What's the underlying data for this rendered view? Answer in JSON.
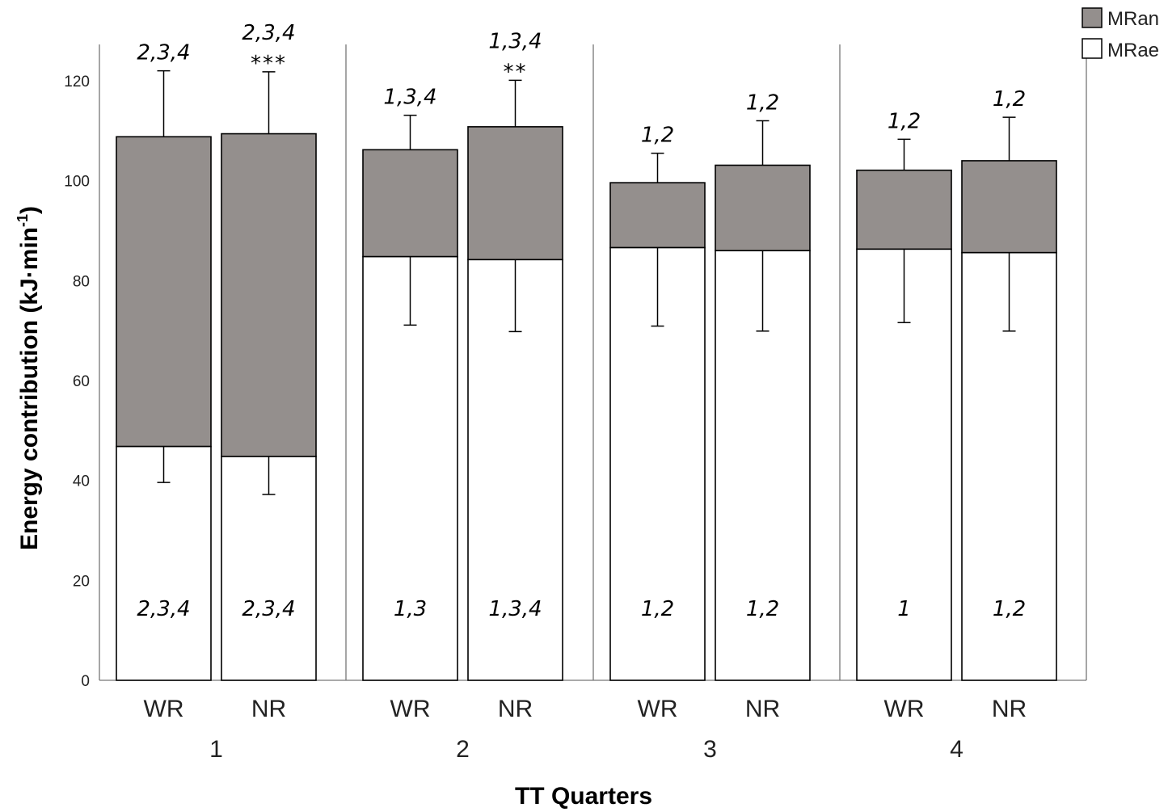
{
  "chart_data": {
    "type": "bar",
    "stacked": true,
    "xlabel": "TT Quarters",
    "ylabel": "Energy contribution (kJ·min",
    "ylabel_sup": "-1",
    "ylabel_end": ")",
    "ylim": [
      0,
      126
    ],
    "yticks": [
      0,
      20,
      40,
      60,
      80,
      100,
      120
    ],
    "quarters": [
      "1",
      "2",
      "3",
      "4"
    ],
    "conditions": [
      "WR",
      "NR"
    ],
    "legend": [
      {
        "name": "MRan",
        "color": "#948f8d"
      },
      {
        "name": "MRae",
        "color": "#ffffff"
      }
    ],
    "legend_position": "top-right",
    "series": [
      {
        "name": "MRae",
        "values": [
          46.8,
          44.8,
          84.8,
          84.2,
          86.6,
          86.0,
          86.3,
          85.6
        ]
      },
      {
        "name": "MRan",
        "values": [
          62.0,
          64.6,
          21.4,
          26.6,
          13.0,
          17.1,
          15.8,
          18.4
        ]
      }
    ],
    "bars": [
      {
        "quarter": "1",
        "condition": "WR",
        "mrae": 46.8,
        "total": 108.8,
        "mrae_err_low": 39.6,
        "total_err_high": 122.0,
        "ann_top": "2,3,4",
        "sig": "",
        "ann_bottom": "2,3,4"
      },
      {
        "quarter": "1",
        "condition": "NR",
        "mrae": 44.8,
        "total": 109.4,
        "mrae_err_low": 37.2,
        "total_err_high": 121.8,
        "ann_top": "2,3,4",
        "sig": "***",
        "ann_bottom": "2,3,4"
      },
      {
        "quarter": "2",
        "condition": "WR",
        "mrae": 84.8,
        "total": 106.2,
        "mrae_err_low": 71.1,
        "total_err_high": 113.1,
        "ann_top": "1,3,4",
        "sig": "",
        "ann_bottom": "1,3"
      },
      {
        "quarter": "2",
        "condition": "NR",
        "mrae": 84.2,
        "total": 110.8,
        "mrae_err_low": 69.8,
        "total_err_high": 120.1,
        "ann_top": "1,3,4",
        "sig": "**",
        "ann_bottom": "1,3,4"
      },
      {
        "quarter": "3",
        "condition": "WR",
        "mrae": 86.6,
        "total": 99.6,
        "mrae_err_low": 70.9,
        "total_err_high": 105.5,
        "ann_top": "1,2",
        "sig": "",
        "ann_bottom": "1,2"
      },
      {
        "quarter": "3",
        "condition": "NR",
        "mrae": 86.0,
        "total": 103.1,
        "mrae_err_low": 69.9,
        "total_err_high": 112.0,
        "ann_top": "1,2",
        "sig": "",
        "ann_bottom": "1,2"
      },
      {
        "quarter": "4",
        "condition": "WR",
        "mrae": 86.3,
        "total": 102.1,
        "mrae_err_low": 71.6,
        "total_err_high": 108.3,
        "ann_top": "1,2",
        "sig": "",
        "ann_bottom": "1"
      },
      {
        "quarter": "4",
        "condition": "NR",
        "mrae": 85.6,
        "total": 104.0,
        "mrae_err_low": 69.9,
        "total_err_high": 112.7,
        "ann_top": "1,2",
        "sig": "",
        "ann_bottom": "1,2"
      }
    ]
  }
}
